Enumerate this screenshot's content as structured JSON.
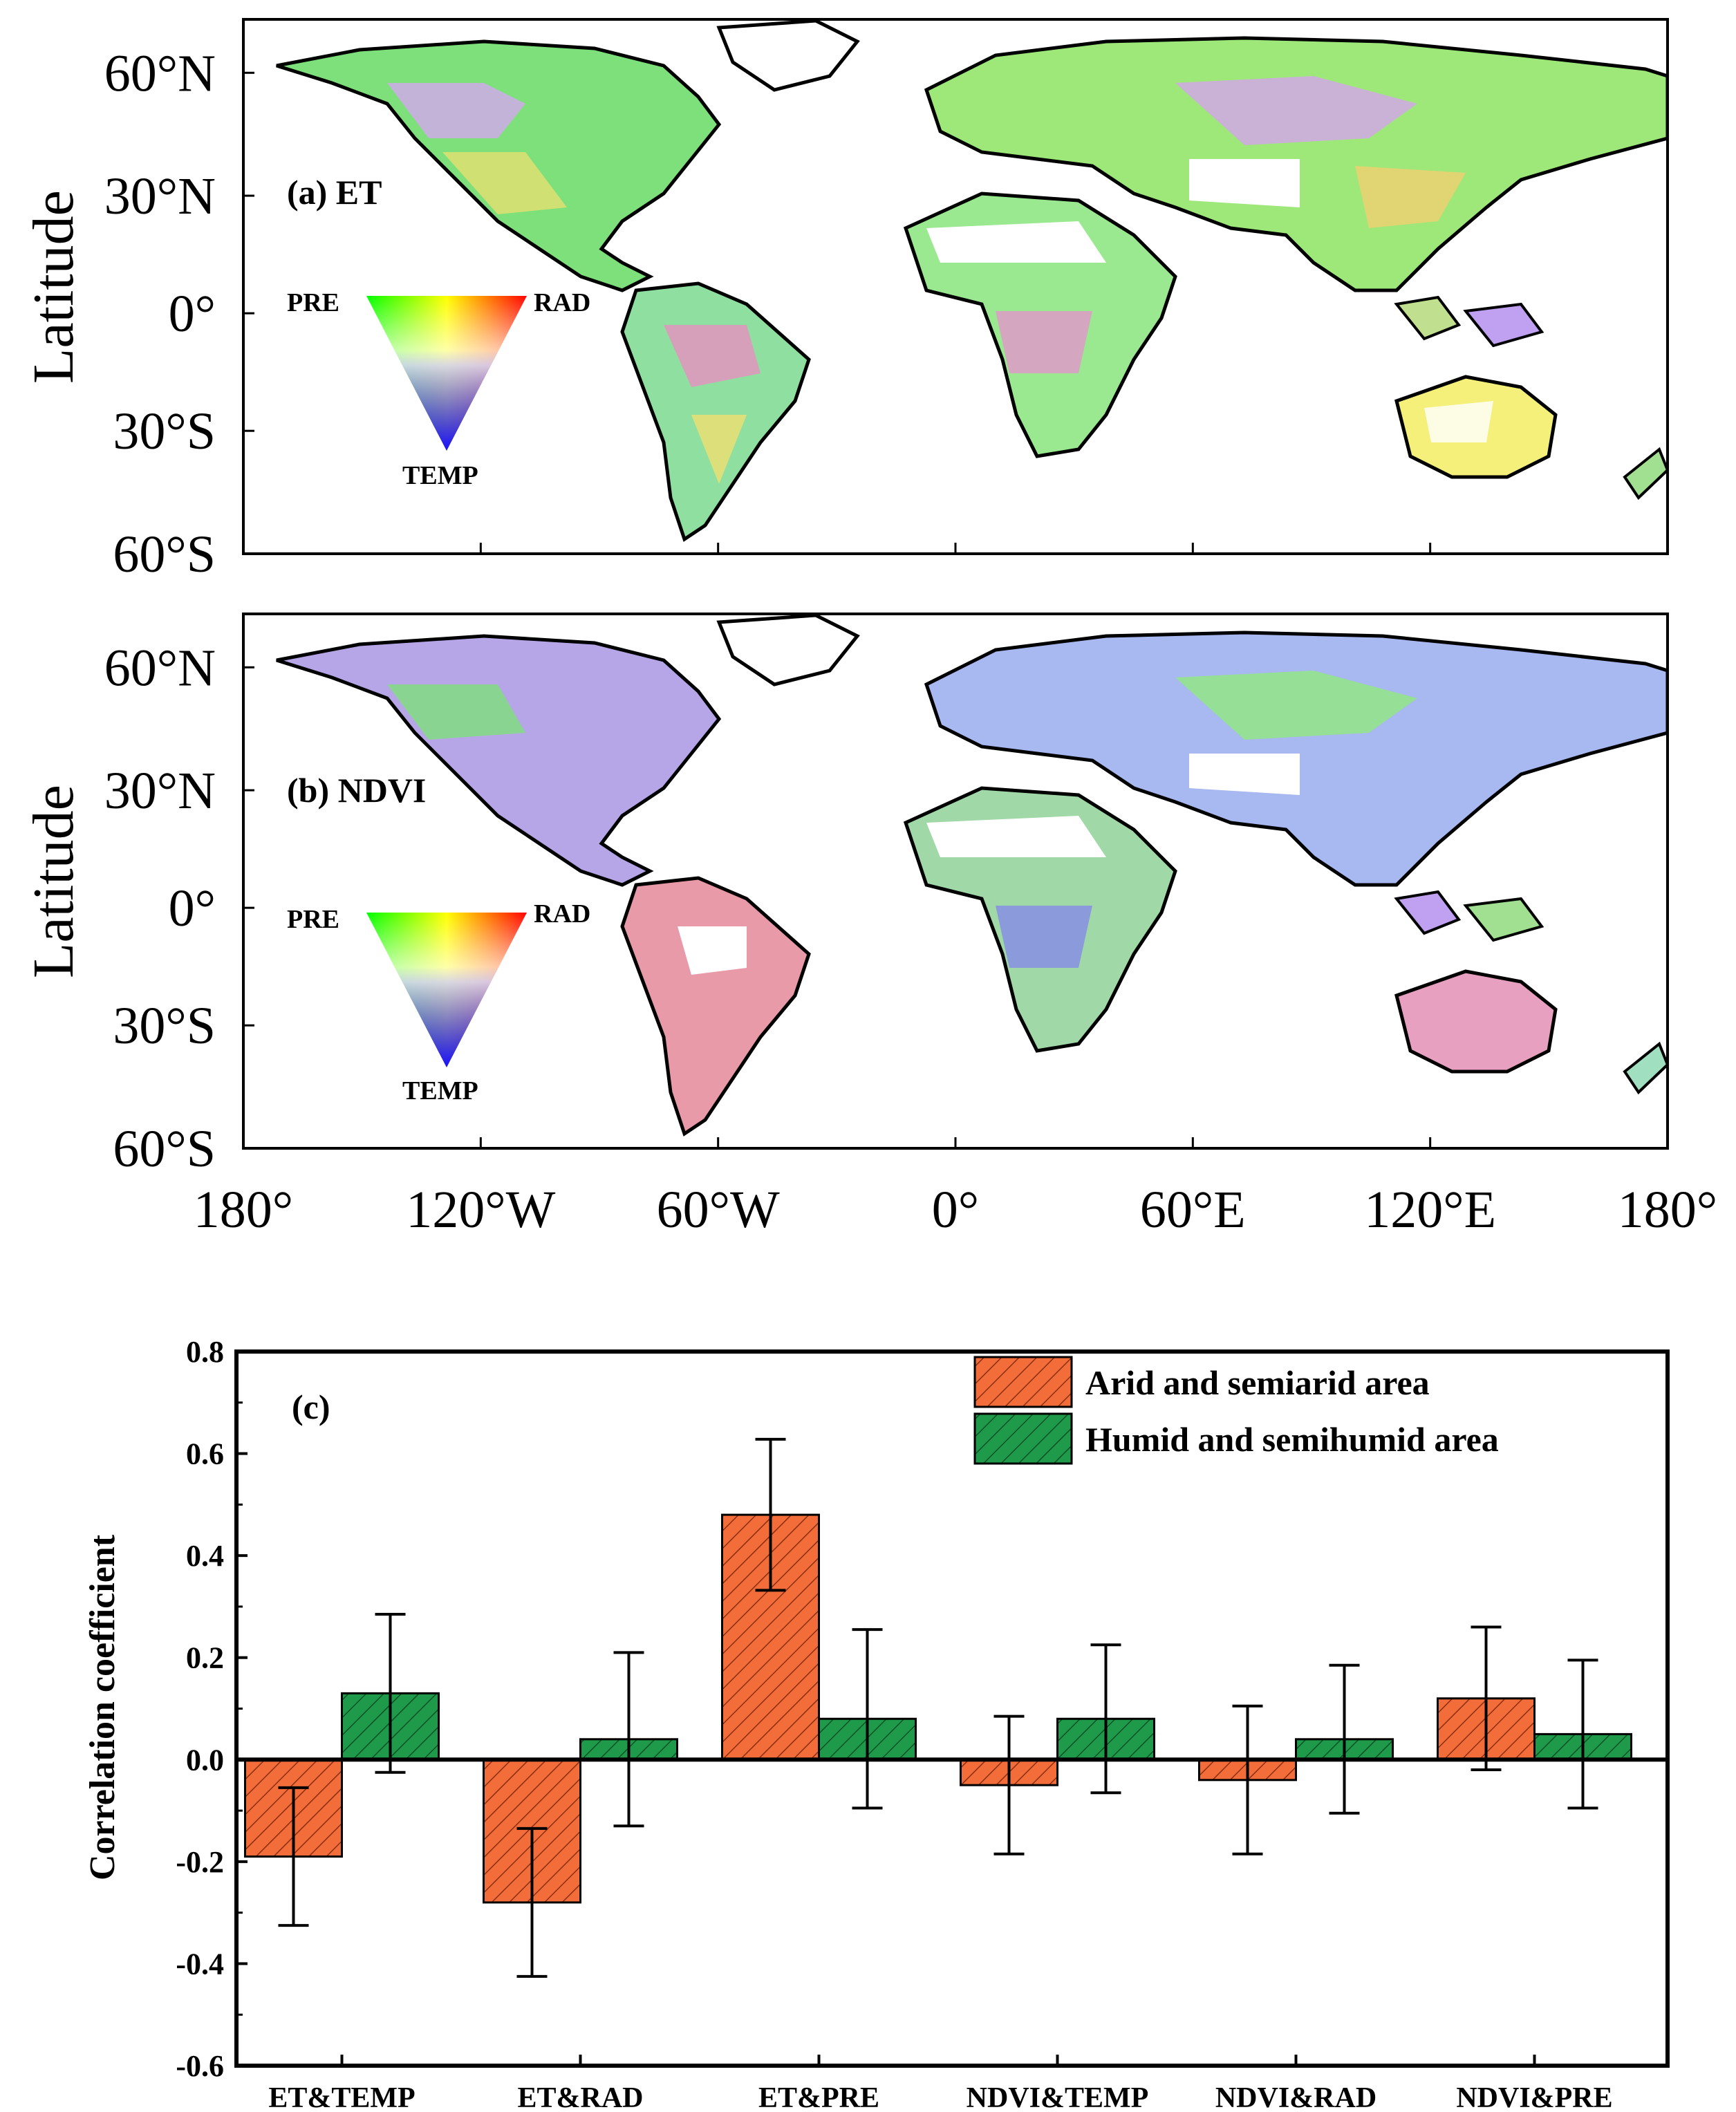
{
  "maps": {
    "lat_axis_title": "Latitude",
    "lat_ticks": [
      "60°N",
      "30°N",
      "0°",
      "30°S",
      "60°S"
    ],
    "lon_ticks": [
      "180°",
      "120°W",
      "60°W",
      "0°",
      "60°E",
      "120°E",
      "180°"
    ],
    "panel_a": {
      "label": "(a) ET",
      "tri_left": "PRE",
      "tri_right": "RAD",
      "tri_bottom": "TEMP"
    },
    "panel_b": {
      "label": "(b) NDVI",
      "tri_left": "PRE",
      "tri_right": "RAD",
      "tri_bottom": "TEMP"
    },
    "colors": {
      "pre": "#00ff00",
      "rad": "#ff0000",
      "temp": "#0000ff",
      "coast": "#000000"
    }
  },
  "chart_data": {
    "type": "bar",
    "panel_label": "(c)",
    "title": "",
    "xlabel": "",
    "ylabel": "Correlation coefficient",
    "ylim": [
      -0.6,
      0.8
    ],
    "yticks": [
      "0.8",
      "0.6",
      "0.4",
      "0.2",
      "0.0",
      "-0.2",
      "-0.4",
      "-0.6"
    ],
    "ytick_values": [
      0.8,
      0.6,
      0.4,
      0.2,
      0.0,
      -0.2,
      -0.4,
      -0.6
    ],
    "categories": [
      "ET&TEMP",
      "ET&RAD",
      "ET&PRE",
      "NDVI&TEMP",
      "NDVI&RAD",
      "NDVI&PRE"
    ],
    "series": [
      {
        "name": "Arid and semiarid area",
        "color": "#f26d3a",
        "hatch_color": "#8a2e10",
        "values": [
          -0.19,
          -0.28,
          0.48,
          -0.05,
          -0.04,
          0.12
        ],
        "errors": [
          0.135,
          0.145,
          0.148,
          0.135,
          0.145,
          0.14
        ]
      },
      {
        "name": "Humid and semihumid area",
        "color": "#1f9a4a",
        "hatch_color": "#0d5226",
        "values": [
          0.13,
          0.04,
          0.08,
          0.08,
          0.04,
          0.05
        ],
        "errors": [
          0.155,
          0.17,
          0.175,
          0.145,
          0.145,
          0.145
        ]
      }
    ]
  }
}
